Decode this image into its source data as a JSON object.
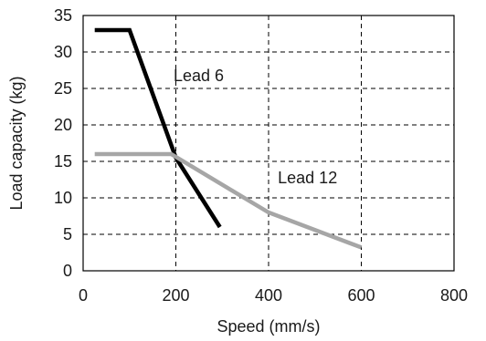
{
  "chart_data": {
    "type": "line",
    "title": "",
    "xlabel": "Speed (mm/s)",
    "ylabel": "Load capacity (kg)",
    "xlim": [
      0,
      800
    ],
    "ylim": [
      0,
      35
    ],
    "xticks": [
      "0",
      "200",
      "400",
      "600",
      "800"
    ],
    "yticks": [
      "0",
      "5",
      "10",
      "15",
      "20",
      "25",
      "30",
      "35"
    ],
    "grid": "dashed",
    "series": [
      {
        "name": "Lead 6",
        "color": "#000000",
        "x": [
          25,
          100,
          200,
          295
        ],
        "y": [
          33,
          33,
          15.5,
          6
        ]
      },
      {
        "name": "Lead 12",
        "color": "#a6a6a6",
        "x": [
          25,
          190,
          400,
          600
        ],
        "y": [
          16,
          16,
          8,
          3.2
        ]
      }
    ],
    "annotations": [
      {
        "text": "Lead 6",
        "x": 195,
        "y": 26
      },
      {
        "text": "Lead 12",
        "x": 420,
        "y": 12
      }
    ]
  }
}
